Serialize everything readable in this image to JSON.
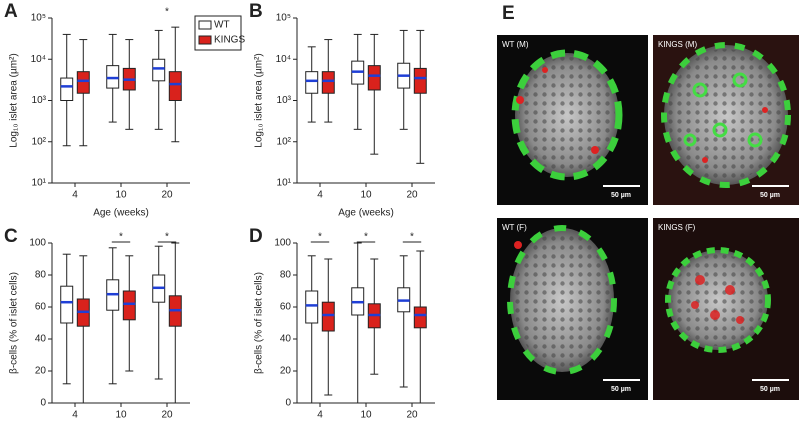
{
  "chart_data": [
    {
      "type": "box",
      "panel": "A",
      "ylabel": "Log₁₀ islet area (µm²)",
      "xlabel": "Age (weeks)",
      "log_scale": true,
      "categories": [
        "4",
        "10",
        "20"
      ],
      "median_color": "#1f3fd6",
      "ylim": [
        10,
        100000
      ],
      "yticks": [
        {
          "value": 10,
          "label": "10¹"
        },
        {
          "value": 100,
          "label": "10²"
        },
        {
          "value": 1000,
          "label": "10³"
        },
        {
          "value": 10000,
          "label": "10⁴"
        },
        {
          "value": 100000,
          "label": "10⁵"
        }
      ],
      "legend": "right",
      "series": [
        {
          "name": "WT",
          "color": "#ffffff",
          "values": [
            {
              "min": 80,
              "q1": 1000,
              "median": 2200,
              "q3": 3500,
              "max": 40000
            },
            {
              "min": 300,
              "q1": 2000,
              "median": 3500,
              "q3": 7000,
              "max": 40000
            },
            {
              "min": 200,
              "q1": 3000,
              "median": 6000,
              "q3": 10000,
              "max": 50000
            }
          ]
        },
        {
          "name": "KINGS",
          "color": "#d9221c",
          "values": [
            {
              "min": 80,
              "q1": 1500,
              "median": 3000,
              "q3": 5000,
              "max": 30000
            },
            {
              "min": 200,
              "q1": 1800,
              "median": 3200,
              "q3": 6000,
              "max": 30000
            },
            {
              "min": 100,
              "q1": 1000,
              "median": 2500,
              "q3": 5000,
              "max": 60000
            }
          ]
        }
      ],
      "annotations": [
        {
          "text": "*",
          "category": "20",
          "bracket": false
        }
      ]
    },
    {
      "type": "box",
      "panel": "B",
      "ylabel": "Log₁₀ islet area (µm²)",
      "xlabel": "Age (weeks)",
      "log_scale": true,
      "categories": [
        "4",
        "10",
        "20"
      ],
      "median_color": "#1f3fd6",
      "ylim": [
        10,
        100000
      ],
      "yticks": [
        {
          "value": 10,
          "label": "10¹"
        },
        {
          "value": 100,
          "label": "10²"
        },
        {
          "value": 1000,
          "label": "10³"
        },
        {
          "value": 10000,
          "label": "10⁴"
        },
        {
          "value": 100000,
          "label": "10⁵"
        }
      ],
      "series": [
        {
          "name": "WT",
          "color": "#ffffff",
          "values": [
            {
              "min": 300,
              "q1": 1500,
              "median": 3000,
              "q3": 5000,
              "max": 20000
            },
            {
              "min": 200,
              "q1": 2500,
              "median": 5000,
              "q3": 9000,
              "max": 40000
            },
            {
              "min": 200,
              "q1": 2000,
              "median": 4000,
              "q3": 8000,
              "max": 50000
            }
          ]
        },
        {
          "name": "KINGS",
          "color": "#d9221c",
          "values": [
            {
              "min": 300,
              "q1": 1500,
              "median": 3000,
              "q3": 5000,
              "max": 30000
            },
            {
              "min": 50,
              "q1": 1800,
              "median": 4000,
              "q3": 7000,
              "max": 40000
            },
            {
              "min": 30,
              "q1": 1500,
              "median": 3500,
              "q3": 6000,
              "max": 50000
            }
          ]
        }
      ],
      "annotations": []
    },
    {
      "type": "box",
      "panel": "C",
      "ylabel": "β-cells (% of islet cells)",
      "xlabel": "Age (weeks)",
      "log_scale": false,
      "categories": [
        "4",
        "10",
        "20"
      ],
      "median_color": "#1f3fd6",
      "ylim": [
        0,
        100
      ],
      "yticks": [
        0,
        20,
        40,
        60,
        80,
        100
      ],
      "series": [
        {
          "name": "WT",
          "color": "#ffffff",
          "values": [
            {
              "min": 12,
              "q1": 50,
              "median": 63,
              "q3": 73,
              "max": 93
            },
            {
              "min": 12,
              "q1": 58,
              "median": 68,
              "q3": 77,
              "max": 97
            },
            {
              "min": 15,
              "q1": 63,
              "median": 72,
              "q3": 80,
              "max": 98
            }
          ]
        },
        {
          "name": "KINGS",
          "color": "#d9221c",
          "values": [
            {
              "min": 0,
              "q1": 48,
              "median": 57,
              "q3": 65,
              "max": 92
            },
            {
              "min": 20,
              "q1": 52,
              "median": 62,
              "q3": 70,
              "max": 92
            },
            {
              "min": 0,
              "q1": 48,
              "median": 58,
              "q3": 67,
              "max": 100
            }
          ]
        }
      ],
      "annotations": [
        {
          "text": "*",
          "category": "10",
          "bracket": true
        },
        {
          "text": "*",
          "category": "20",
          "bracket": true
        }
      ]
    },
    {
      "type": "box",
      "panel": "D",
      "ylabel": "β-cells (% of islet cells)",
      "xlabel": "Age (weeks)",
      "log_scale": false,
      "categories": [
        "4",
        "10",
        "20"
      ],
      "median_color": "#1f3fd6",
      "ylim": [
        0,
        100
      ],
      "yticks": [
        0,
        20,
        40,
        60,
        80,
        100
      ],
      "series": [
        {
          "name": "WT",
          "color": "#ffffff",
          "values": [
            {
              "min": 0,
              "q1": 50,
              "median": 61,
              "q3": 70,
              "max": 92
            },
            {
              "min": 0,
              "q1": 55,
              "median": 63,
              "q3": 72,
              "max": 100
            },
            {
              "min": 10,
              "q1": 57,
              "median": 64,
              "q3": 72,
              "max": 92
            }
          ]
        },
        {
          "name": "KINGS",
          "color": "#d9221c",
          "values": [
            {
              "min": 5,
              "q1": 45,
              "median": 55,
              "q3": 63,
              "max": 90
            },
            {
              "min": 18,
              "q1": 47,
              "median": 55,
              "q3": 62,
              "max": 90
            },
            {
              "min": 0,
              "q1": 47,
              "median": 55,
              "q3": 60,
              "max": 95
            }
          ]
        }
      ],
      "annotations": [
        {
          "text": "*",
          "category": "4",
          "bracket": true
        },
        {
          "text": "*",
          "category": "10",
          "bracket": true
        },
        {
          "text": "*",
          "category": "20",
          "bracket": true
        }
      ]
    }
  ],
  "panel_e": {
    "letter": "E",
    "images": [
      {
        "label": "WT (M)",
        "scale": "50 µm"
      },
      {
        "label": "KINGS (M)",
        "scale": "50 µm"
      },
      {
        "label": "WT (F)",
        "scale": "50 µm"
      },
      {
        "label": "KINGS (F)",
        "scale": "50 µm"
      }
    ]
  }
}
